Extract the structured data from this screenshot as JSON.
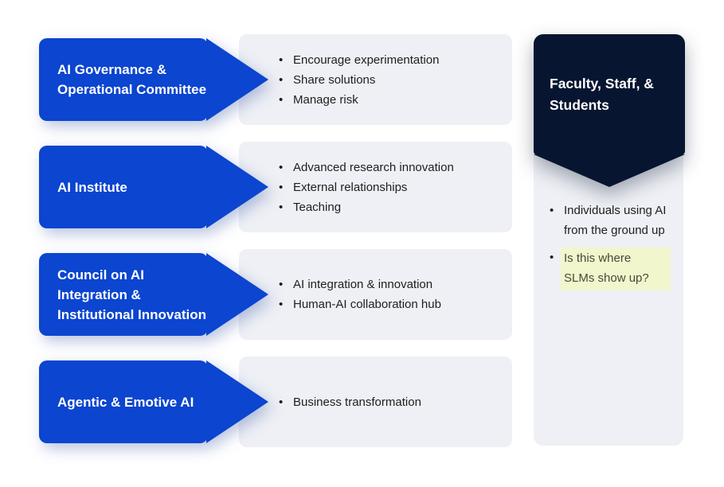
{
  "colors": {
    "arrow_blue": "#0b45d0",
    "banner_navy": "#081530",
    "panel_gray": "#eef0f5",
    "highlight_yellow": "#f2f6cd",
    "body_text": "#1e1e1e",
    "label_text": "#ffffff"
  },
  "icons": {
    "bullet": "•"
  },
  "rows": [
    {
      "label": "AI Governance & Operational Committee",
      "bullets": [
        "Encourage experimentation",
        "Share solutions",
        "Manage risk"
      ]
    },
    {
      "label": "AI Institute",
      "bullets": [
        "Advanced research innovation",
        "External relationships",
        "Teaching"
      ]
    },
    {
      "label": "Council on AI Integration & Institutional Innovation",
      "bullets": [
        "AI integration & innovation",
        "Human-AI collaboration hub"
      ]
    },
    {
      "label": "Agentic & Emotive AI",
      "bullets": [
        "Business transformation"
      ]
    }
  ],
  "right_panel": {
    "banner_label": "Faculty, Staff, & Students",
    "bullets": [
      {
        "text": "Individuals using AI from the ground up",
        "highlighted": false
      },
      {
        "text": "Is this where SLMs show up?",
        "highlighted": true
      }
    ]
  }
}
